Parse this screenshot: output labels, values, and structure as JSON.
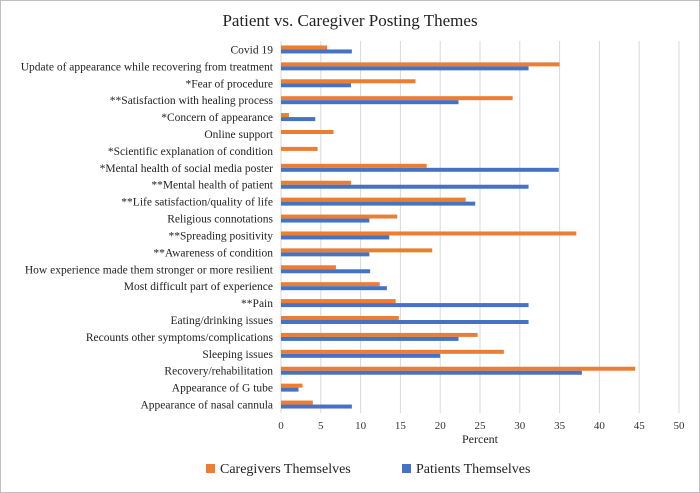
{
  "chart_data": {
    "type": "bar",
    "orientation": "horizontal",
    "title": "Patient vs. Caregiver Posting Themes",
    "xlabel": "Percent",
    "ylabel": "",
    "xlim": [
      0,
      50
    ],
    "x_ticks": [
      0,
      5,
      10,
      15,
      20,
      25,
      30,
      35,
      40,
      45,
      50
    ],
    "grid": true,
    "legend_position": "bottom",
    "categories": [
      "Covid 19",
      "Update of appearance while recovering from treatment",
      "*Fear of procedure",
      "**Satisfaction with healing process",
      "*Concern of appearance",
      "Online support",
      "*Scientific explanation of condition",
      "*Mental health of social media poster",
      "**Mental health of patient",
      "**Life satisfaction/quality of life",
      "Religious connotations",
      "**Spreading positivity",
      "**Awareness of condition",
      "How experience made them stronger or more resilient",
      "Most difficult part of experience",
      "**Pain",
      "Eating/drinking issues",
      "Recounts other symptoms/complications",
      "Sleeping issues",
      "Recovery/rehabilitation",
      "Appearance of G tube",
      "Appearance of nasal cannula"
    ],
    "series": [
      {
        "name": "Caregivers Themselves",
        "color": "#ED7D31",
        "values": [
          5.8,
          35,
          16.9,
          29.1,
          1.0,
          6.6,
          4.6,
          18.3,
          8.8,
          23.2,
          14.6,
          37.1,
          19.0,
          6.9,
          12.4,
          14.4,
          14.8,
          24.7,
          28.0,
          44.5,
          2.7,
          4.0
        ]
      },
      {
        "name": "Patients Themselves",
        "color": "#4472C4",
        "values": [
          8.9,
          31.1,
          8.8,
          22.3,
          4.3,
          0,
          0,
          34.9,
          31.1,
          24.4,
          11.1,
          13.6,
          11.1,
          11.2,
          13.3,
          31.1,
          31.1,
          22.3,
          20.0,
          37.8,
          2.2,
          8.9
        ]
      }
    ]
  }
}
